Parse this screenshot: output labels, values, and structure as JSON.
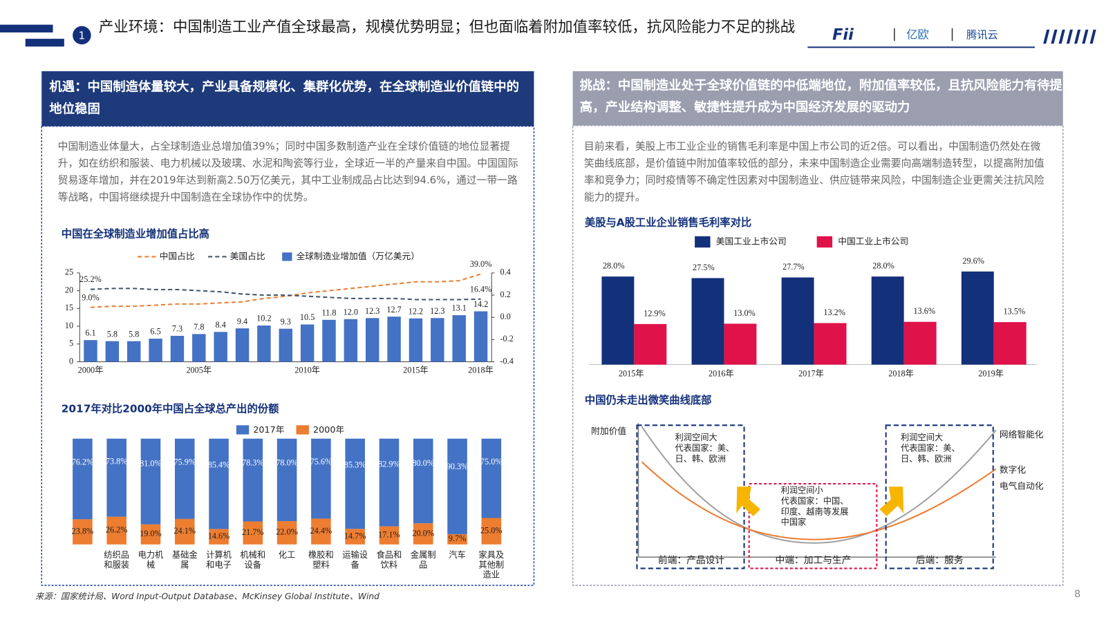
{
  "header": {
    "number": "1",
    "title": "产业环境：中国制造工业产值全球最高，规模优势明显；但也面临着附加值率较低，抗风险能力不足的挑战",
    "logos": [
      "Fii",
      "亿欧",
      "腾讯云"
    ]
  },
  "left_panel": {
    "heading": "机遇：中国制造体量较大，产业具备规模化、集群化优势，在全球制造业价值链中的地位稳固",
    "text": "中国制造业体量大，占全球制造业总增加值39%；同时中国多数制造产业在全球价值链的地位显著提升，如在纺织和服装、电力机械以及玻璃、水泥和陶瓷等行业，全球近一半的产量来自中国。中国国际贸易逐年增加，并在2019年达到新高2.50万亿美元，其中工业制成品占比达到94.6%，通过一带一路等战略，中国将继续提升中国制造在全球协作中的优势。"
  },
  "right_panel": {
    "heading": "挑战：中国制造业处于全球价值链的中低端地位，附加值率较低，且抗风险能力有待提高，产业结构调整、敏捷性提升成为中国经济发展的驱动力",
    "text": "目前来看，美股上市工业企业的销售毛利率是中国上市公司的近2倍。可以看出，中国制造仍然处在微笑曲线底部，是价值链中附加值率较低的部分，未来中国制造企业需要向高端制造转型，以提高附加值率和竞争力；同时疫情等不确定性因素对中国制造业、供应链带来风险，中国制造企业更需关注抗风险能力的提升。"
  },
  "chart_data": [
    {
      "type": "combo",
      "title": "中国在全球制造业增加值占比高",
      "categories": [
        "2000年",
        null,
        null,
        null,
        null,
        "2005年",
        null,
        null,
        null,
        null,
        "2010年",
        null,
        null,
        null,
        null,
        "2015年",
        null,
        null,
        "2018年"
      ],
      "series": [
        {
          "name": "中国占比",
          "kind": "line",
          "dashed": true,
          "axis": "y2",
          "color": "#ed7d31",
          "values": [
            0.09,
            0.1,
            0.1,
            0.11,
            0.12,
            0.12,
            0.13,
            0.14,
            0.17,
            0.19,
            0.22,
            0.24,
            0.26,
            0.28,
            0.3,
            0.32,
            0.32,
            0.33,
            0.39
          ],
          "value_labels": [
            "9.0%",
            null,
            null,
            null,
            null,
            null,
            null,
            null,
            null,
            null,
            null,
            null,
            null,
            null,
            null,
            null,
            null,
            null,
            "39.0%"
          ]
        },
        {
          "name": "美国占比",
          "kind": "line",
          "dashed": true,
          "axis": "y2",
          "color": "#44546a",
          "values": [
            0.252,
            0.26,
            0.26,
            0.25,
            0.25,
            0.24,
            0.23,
            0.21,
            0.2,
            0.2,
            0.19,
            0.18,
            0.17,
            0.17,
            0.17,
            0.16,
            0.16,
            0.16,
            0.164
          ],
          "value_labels": [
            "25.2%",
            null,
            null,
            null,
            null,
            null,
            null,
            null,
            null,
            null,
            null,
            null,
            null,
            null,
            null,
            null,
            null,
            null,
            "16.4%"
          ]
        },
        {
          "name": "全球制造业增加值（万亿美元）",
          "kind": "bar",
          "color": "#4472c4",
          "values": [
            6.1,
            5.8,
            5.8,
            6.5,
            7.3,
            7.8,
            8.4,
            9.4,
            10.2,
            9.3,
            10.5,
            11.8,
            12.0,
            12.3,
            12.7,
            12.2,
            12.3,
            13.1,
            14.2
          ],
          "value_labels": [
            "6.1",
            "5.8",
            "5.8",
            "6.5",
            "7.3",
            "7.8",
            "8.4",
            "9.4",
            "10.2",
            "9.3",
            "10.5",
            "11.8",
            "12.0",
            "12.3",
            "12.7",
            "12.2",
            "12.3",
            "13.1",
            "14.2"
          ]
        }
      ],
      "ylim": [
        0,
        25
      ],
      "yticks": [
        0,
        5,
        10,
        15,
        20,
        25
      ],
      "y2lim": [
        -0.4,
        0.4
      ],
      "y2ticks": [
        -0.4,
        -0.2,
        {
          "value": 0,
          "label": "0.0"
        },
        0.2,
        0.4
      ]
    },
    {
      "type": "stacked_bar",
      "title": "2017年对比2000年中国占全球总产出的份额",
      "categories": [
        null,
        "纺织品和服装",
        "电力机械",
        "基础金属",
        "计算机和电子",
        "机械和设备",
        "化工",
        "橡胶和塑料",
        "运输设备",
        "食品和饮料",
        "金属制品",
        "汽车",
        "家具及其他制造业"
      ],
      "series": [
        {
          "name": "2017年",
          "color": "#4472c4",
          "values": [
            76.2,
            73.8,
            81.0,
            75.9,
            85.4,
            78.3,
            78.0,
            75.6,
            85.3,
            82.9,
            80.0,
            90.3,
            75.0
          ],
          "value_labels": [
            "76.2%",
            "73.8%",
            "81.0%",
            "75.9%",
            "85.4%",
            "78.3%",
            "78.0%",
            "75.6%",
            "85.3%",
            "82.9%",
            "80.0%",
            "90.3%",
            "75.0%"
          ]
        },
        {
          "name": "2000年",
          "color": "#ed7d31",
          "values": [
            23.8,
            26.2,
            19.0,
            24.1,
            14.6,
            21.7,
            22.0,
            24.4,
            14.7,
            17.1,
            20.0,
            9.7,
            25.0
          ],
          "value_labels": [
            "23.8%",
            "26.2%",
            "19.0%",
            "24.1%",
            "14.6%",
            "21.7%",
            "22.0%",
            "24.4%",
            "14.7%",
            "17.1%",
            "20.0%",
            "9.7%",
            "25.0%"
          ]
        }
      ]
    },
    {
      "type": "grouped_bar",
      "title": "美股与A股工业企业销售毛利率对比",
      "categories": [
        "2015年",
        "2016年",
        "2017年",
        "2018年",
        "2019年"
      ],
      "series": [
        {
          "name": "美国工业上市公司",
          "color": "#13307a",
          "values": [
            28.0,
            27.5,
            27.7,
            28.0,
            29.6
          ],
          "value_labels": [
            "28.0%",
            "27.5%",
            "27.7%",
            "28.0%",
            "29.6%"
          ]
        },
        {
          "name": "中国工业上市公司",
          "color": "#e0124a",
          "values": [
            12.9,
            13.0,
            13.2,
            13.6,
            13.5
          ],
          "value_labels": [
            "12.9%",
            "13.0%",
            "13.2%",
            "13.6%",
            "13.5%"
          ]
        }
      ]
    }
  ],
  "smile_curve": {
    "title": "中国仍未走出微笑曲线底部",
    "y_label": "附加价值",
    "boxes": [
      {
        "lines": [
          "利润空间大",
          "代表国家：美、",
          "日、韩、欧洲"
        ],
        "stage": "前端：产品设计"
      },
      {
        "lines": [
          "利润空间小",
          "代表国家：中国、",
          "印度、越南等发展",
          "中国家"
        ],
        "stage": "中端：加工与生产"
      },
      {
        "lines": [
          "利润空间大",
          "代表国家：美、",
          "日、韩、欧洲"
        ],
        "stage": "后端：服务"
      }
    ],
    "right_labels": [
      "网络智能化",
      "数字化",
      "电气自动化"
    ]
  },
  "footer": {
    "source": "来源：国家统计局、Word Input-Output Database、McKinsey Global Institute、Wind",
    "page": "8"
  }
}
